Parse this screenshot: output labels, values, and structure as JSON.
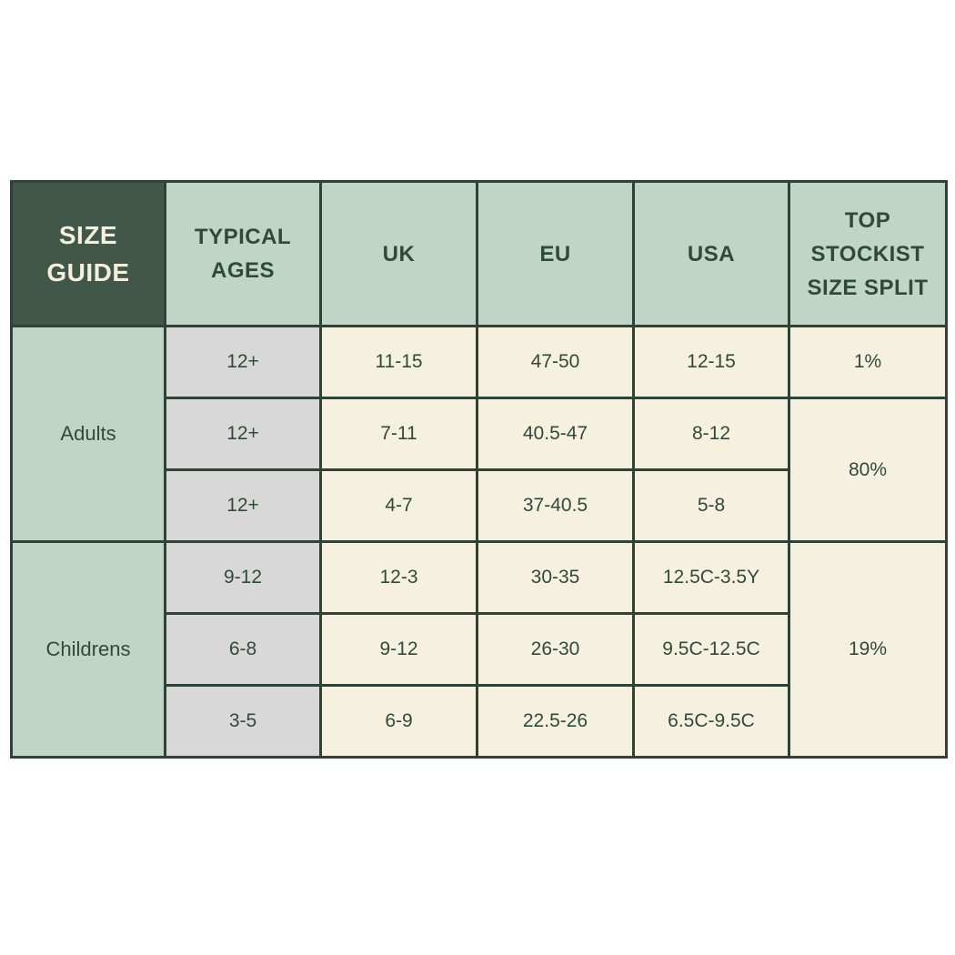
{
  "table": {
    "corner": [
      "SIZE",
      "GUIDE"
    ],
    "headers": [
      [
        "TYPICAL",
        "AGES"
      ],
      [
        "UK"
      ],
      [
        "EU"
      ],
      [
        "USA"
      ],
      [
        "TOP",
        "STOCKIST",
        "SIZE SPLIT"
      ]
    ],
    "groups": [
      {
        "label": "Adults",
        "rows": [
          {
            "age": "12+",
            "uk": "11-15",
            "eu": "47-50",
            "usa": "12-15"
          },
          {
            "age": "12+",
            "uk": "7-11",
            "eu": "40.5-47",
            "usa": "8-12"
          },
          {
            "age": "12+",
            "uk": "4-7",
            "eu": "37-40.5",
            "usa": "5-8"
          }
        ]
      },
      {
        "label": "Childrens",
        "rows": [
          {
            "age": "9-12",
            "uk": "12-3",
            "eu": "30-35",
            "usa": "12.5C-3.5Y"
          },
          {
            "age": "6-8",
            "uk": "9-12",
            "eu": "26-30",
            "usa": "9.5C-12.5C"
          },
          {
            "age": "3-5",
            "uk": "6-9",
            "eu": "22.5-26",
            "usa": "6.5C-9.5C"
          }
        ]
      }
    ],
    "split": [
      "1%",
      "80%",
      "19%"
    ]
  },
  "colors": {
    "header_dark": "#41574a",
    "header_light": "#c1d4c8",
    "age_cell": "#d8d8d8",
    "value_cell": "#f6f0df",
    "text": "#2f4a3a",
    "border": "#2f4236"
  }
}
